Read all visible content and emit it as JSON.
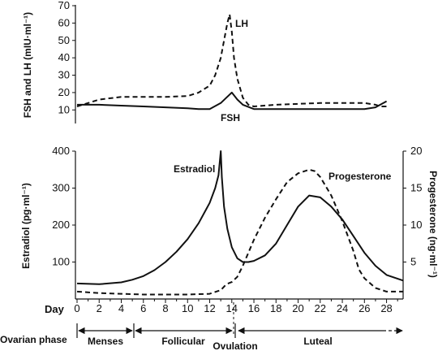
{
  "chart_data": [
    {
      "type": "line",
      "panel": "top",
      "ylabel": "FSH and LH (mIU·ml⁻¹)",
      "ylim": [
        5,
        70
      ],
      "yticks": [
        "10",
        "20",
        "30",
        "40",
        "50",
        "60",
        "70"
      ],
      "xlim": [
        0,
        29.5
      ],
      "series": [
        {
          "name": "LH",
          "style": "dashed",
          "x": [
            0,
            1,
            2,
            4,
            6,
            8,
            10,
            11,
            12,
            12.5,
            13,
            13.3,
            13.6,
            13.8,
            14,
            14.2,
            14.5,
            15,
            15.5,
            16,
            18,
            20,
            22,
            24,
            26,
            27,
            27.5,
            28
          ],
          "y": [
            12,
            14,
            16,
            17.5,
            17.5,
            17.5,
            18,
            20,
            24,
            30,
            40,
            50,
            60,
            65,
            55,
            40,
            28,
            17,
            13,
            12,
            13,
            13.5,
            14,
            14,
            14,
            13,
            12,
            12
          ]
        },
        {
          "name": "FSH",
          "style": "solid",
          "x": [
            0,
            2,
            4,
            6,
            8,
            10,
            11,
            12,
            13,
            13.5,
            14,
            14.5,
            15,
            16,
            18,
            20,
            22,
            24,
            26,
            27,
            28
          ],
          "y": [
            13,
            13,
            12.5,
            12,
            11.5,
            11,
            10.5,
            10.5,
            14,
            17,
            20,
            16,
            13,
            10.5,
            10.5,
            10.5,
            10.5,
            10.5,
            10.5,
            11.5,
            15
          ]
        }
      ]
    },
    {
      "type": "line",
      "panel": "bottom",
      "ylabel": "Estradiol (pg·ml⁻¹)",
      "y2label": "Progesterone (ng·ml⁻¹)",
      "ylim": [
        0,
        400
      ],
      "y2lim": [
        0,
        20
      ],
      "yticks": [
        "100",
        "200",
        "300",
        "400"
      ],
      "y2ticks": [
        "5",
        "10",
        "15",
        "20"
      ],
      "xlabel": "Day",
      "xlim": [
        0,
        29.5
      ],
      "xticks": [
        "0",
        "2",
        "4",
        "6",
        "8",
        "10",
        "12",
        "14",
        "16",
        "18",
        "20",
        "22",
        "24",
        "26",
        "28"
      ],
      "series": [
        {
          "name": "Estradiol",
          "style": "solid",
          "axis": "left",
          "x": [
            0,
            2,
            4,
            5,
            6,
            7,
            8,
            9,
            10,
            11,
            12,
            12.5,
            12.8,
            13,
            13.1,
            13.3,
            13.6,
            14,
            14.5,
            15,
            15.5,
            16,
            17,
            18,
            19,
            20,
            21,
            22,
            23,
            24,
            25,
            26,
            27,
            28,
            29.5
          ],
          "y": [
            42,
            40,
            45,
            52,
            62,
            78,
            100,
            128,
            162,
            205,
            260,
            300,
            335,
            400,
            330,
            250,
            190,
            140,
            110,
            100,
            100,
            103,
            118,
            150,
            200,
            250,
            280,
            275,
            250,
            215,
            170,
            125,
            90,
            65,
            50
          ]
        },
        {
          "name": "Progesterone",
          "style": "dashed",
          "axis": "right",
          "x": [
            0,
            2,
            4,
            6,
            8,
            10,
            12,
            13,
            13.5,
            14,
            14.5,
            15,
            16,
            17,
            18,
            19,
            20,
            21,
            21.5,
            22,
            23,
            24,
            25,
            25.5,
            26,
            27,
            28,
            29.5
          ],
          "y": [
            1,
            0.8,
            0.7,
            0.6,
            0.6,
            0.6,
            0.7,
            1.2,
            2,
            2.3,
            3,
            4.5,
            8,
            11,
            13.5,
            15.8,
            17,
            17.5,
            17.3,
            16.5,
            14,
            10.5,
            6.5,
            4,
            2.8,
            1.5,
            1,
            1
          ]
        }
      ]
    }
  ],
  "series_labels": {
    "lh": "LH",
    "fsh": "FSH",
    "estradiol": "Estradiol",
    "progesterone": "Progesterone"
  },
  "phases": {
    "title": "Ovarian phase",
    "menses": "Menses",
    "follicular": "Follicular",
    "ovulation": "Ovulation",
    "luteal": "Luteal"
  }
}
